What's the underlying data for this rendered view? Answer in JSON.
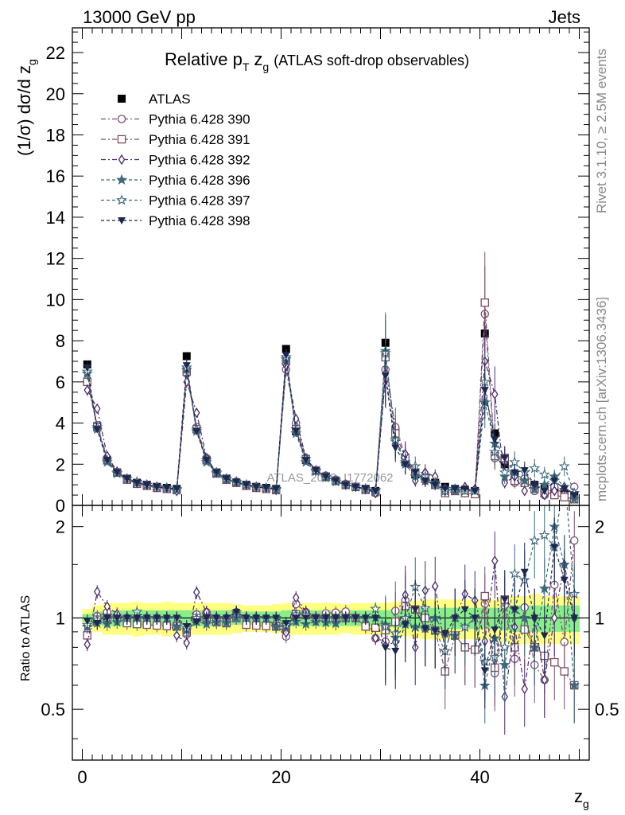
{
  "header": {
    "left": "13000 GeV pp",
    "right": "Jets"
  },
  "side_texts": {
    "rivet": "Rivet 3.1.10, ≥ 2.5M events",
    "mcplots": "mcplots.cern.ch [arXiv:1306.3436]"
  },
  "watermark": "ATLAS_2019_I1772062",
  "chart_data": [
    {
      "type": "scatter",
      "title": "Relative p_T z_g (ATLAS soft-drop observables)",
      "title_main": "Relative p",
      "title_sub_T": "T",
      "title_zg": "z",
      "title_sub_g": "g",
      "title_paren": "(ATLAS soft-drop observables)",
      "ylabel": "(1/σ) dσ/d z_g",
      "ylabel_main": "(1/σ) dσ/d z",
      "ylabel_sub": "g",
      "xlabel_main": "z",
      "xlabel_sub": "g",
      "xlim": [
        -1,
        51
      ],
      "ylim": [
        0,
        23.2
      ],
      "y_ticks": [
        0,
        2,
        4,
        6,
        8,
        10,
        12,
        14,
        16,
        18,
        20,
        22
      ],
      "legend_position": "top-left",
      "x": [
        0.5,
        1.5,
        2.5,
        3.5,
        4.5,
        5.5,
        6.5,
        7.5,
        8.5,
        9.5,
        10.5,
        11.5,
        12.5,
        13.5,
        14.5,
        15.5,
        16.5,
        17.5,
        18.5,
        19.5,
        20.5,
        21.5,
        22.5,
        23.5,
        24.5,
        25.5,
        26.5,
        27.5,
        28.5,
        29.5,
        30.5,
        31.5,
        32.5,
        33.5,
        34.5,
        35.5,
        36.5,
        37.5,
        38.5,
        39.5,
        40.5,
        41.5,
        42.5,
        43.5,
        44.5,
        45.5,
        46.5,
        47.5,
        48.5,
        49.5
      ],
      "series": [
        {
          "name": "ATLAS",
          "color": "#000000",
          "marker": "square-filled",
          "values": [
            6.85,
            3.85,
            2.2,
            1.6,
            1.3,
            1.1,
            1.0,
            0.9,
            0.85,
            0.8,
            7.25,
            3.7,
            2.2,
            1.6,
            1.3,
            1.1,
            1.0,
            0.9,
            0.85,
            0.8,
            7.6,
            3.6,
            2.2,
            1.7,
            1.4,
            1.2,
            1.0,
            0.9,
            0.8,
            0.7,
            7.9,
            3.6,
            2.1,
            1.5,
            1.3,
            1.1,
            0.9,
            0.8,
            0.75,
            0.7,
            8.35,
            3.5,
            2.0,
            1.5,
            1.2,
            1.0,
            0.8,
            0.7,
            0.6,
            0.5
          ]
        },
        {
          "name": "Pythia 6.428 390",
          "color": "#7a4e7a",
          "marker": "circle-open",
          "values": [
            6.1,
            3.9,
            2.3,
            1.6,
            1.3,
            1.1,
            1.0,
            0.9,
            0.8,
            0.75,
            6.4,
            3.8,
            2.3,
            1.6,
            1.3,
            1.15,
            1.0,
            0.9,
            0.8,
            0.75,
            6.6,
            4.0,
            2.3,
            1.7,
            1.45,
            1.25,
            1.05,
            0.9,
            0.75,
            0.6,
            6.6,
            3.8,
            2.4,
            1.6,
            1.2,
            1.0,
            0.8,
            0.7,
            0.6,
            0.55,
            9.3,
            2.3,
            2.2,
            1.1,
            1.3,
            0.7,
            0.5,
            0.9,
            0.5,
            0.9
          ]
        },
        {
          "name": "Pythia 6.428 391",
          "color": "#7a4e60",
          "marker": "square-open",
          "values": [
            6.0,
            3.8,
            2.2,
            1.6,
            1.25,
            1.05,
            0.95,
            0.85,
            0.8,
            0.75,
            6.5,
            3.7,
            2.2,
            1.55,
            1.25,
            1.1,
            0.95,
            0.85,
            0.8,
            0.75,
            7.0,
            3.7,
            2.25,
            1.7,
            1.4,
            1.2,
            1.0,
            0.9,
            0.75,
            0.65,
            7.2,
            3.5,
            2.3,
            1.6,
            1.3,
            1.0,
            0.6,
            0.7,
            0.6,
            0.55,
            9.85,
            2.4,
            2.3,
            1.2,
            1.1,
            0.8,
            0.6,
            0.5,
            0.4,
            0.3
          ]
        },
        {
          "name": "Pythia 6.428 392",
          "color": "#4a2a6e",
          "marker": "diamond-open",
          "values": [
            5.6,
            4.7,
            2.4,
            1.65,
            1.3,
            1.1,
            1.0,
            0.9,
            0.85,
            0.7,
            6.0,
            4.5,
            2.3,
            1.6,
            1.3,
            1.15,
            1.0,
            0.9,
            0.85,
            0.75,
            6.8,
            4.2,
            2.3,
            1.7,
            1.4,
            1.2,
            1.0,
            0.9,
            0.8,
            0.6,
            6.4,
            3.0,
            2.5,
            1.2,
            1.6,
            1.4,
            0.7,
            0.8,
            0.9,
            0.8,
            7.0,
            5.4,
            1.1,
            1.4,
            0.7,
            1.0,
            0.5,
            0.7,
            0.9,
            0.5
          ]
        },
        {
          "name": "Pythia 6.428 396",
          "color": "#3e6878",
          "marker": "star-filled",
          "values": [
            6.4,
            3.7,
            2.1,
            1.55,
            1.3,
            1.1,
            1.0,
            0.9,
            0.85,
            0.75,
            6.6,
            3.6,
            2.1,
            1.55,
            1.25,
            1.1,
            1.0,
            0.9,
            0.85,
            0.75,
            7.1,
            3.5,
            2.1,
            1.65,
            1.35,
            1.15,
            1.0,
            0.9,
            0.8,
            0.7,
            7.5,
            3.1,
            2.0,
            1.4,
            1.2,
            1.1,
            0.8,
            0.7,
            0.7,
            0.7,
            5.0,
            3.0,
            1.4,
            1.6,
            1.2,
            0.8,
            1.0,
            1.4,
            0.9,
            0.3
          ]
        },
        {
          "name": "Pythia 6.428 397",
          "color": "#3e6878",
          "marker": "star-open",
          "values": [
            6.5,
            3.8,
            2.2,
            1.6,
            1.3,
            1.15,
            1.0,
            0.9,
            0.85,
            0.8,
            6.7,
            3.7,
            2.2,
            1.6,
            1.3,
            1.15,
            1.0,
            0.9,
            0.85,
            0.8,
            7.2,
            3.7,
            2.25,
            1.7,
            1.4,
            1.2,
            1.0,
            0.9,
            0.8,
            0.75,
            7.4,
            3.2,
            2.1,
            1.9,
            1.4,
            1.0,
            0.7,
            0.8,
            0.7,
            0.7,
            6.0,
            2.6,
            1.6,
            2.1,
            1.6,
            1.8,
            1.5,
            1.2,
            1.9,
            0.6
          ]
        },
        {
          "name": "Pythia 6.428 398",
          "color": "#1c2850",
          "marker": "triangle-down-filled",
          "values": [
            6.7,
            3.7,
            2.2,
            1.6,
            1.3,
            1.1,
            1.0,
            0.9,
            0.85,
            0.8,
            6.8,
            3.6,
            2.2,
            1.6,
            1.3,
            1.15,
            1.0,
            0.9,
            0.85,
            0.8,
            7.3,
            3.6,
            2.2,
            1.7,
            1.4,
            1.2,
            1.0,
            0.9,
            0.8,
            0.7,
            6.3,
            2.8,
            2.0,
            1.6,
            1.2,
            1.0,
            0.8,
            0.8,
            0.8,
            0.7,
            5.6,
            3.2,
            2.3,
            1.6,
            1.7,
            1.0,
            0.7,
            1.2,
            0.8,
            0.5
          ]
        }
      ]
    },
    {
      "type": "scatter",
      "ylabel": "Ratio to ATLAS",
      "xlim": [
        -1,
        51
      ],
      "ylim": [
        0.34,
        2.35
      ],
      "y_ticks": [
        0.5,
        1,
        2
      ],
      "y_tick_labels": [
        "0.5",
        "1",
        "2"
      ],
      "x_ticks": [
        0,
        20,
        40
      ],
      "x_tick_labels": [
        "0",
        "20",
        "40"
      ],
      "bands": [
        {
          "name": "ATLAS uncertainty (outer)",
          "color": "#ffff80",
          "halfwidth": [
            0.07,
            0.1,
            0.12,
            0.12,
            0.12,
            0.13,
            0.12,
            0.12,
            0.13,
            0.12,
            0.12,
            0.12,
            0.12,
            0.12,
            0.12,
            0.11,
            0.1,
            0.1,
            0.1,
            0.11,
            0.12,
            0.12,
            0.12,
            0.12,
            0.12,
            0.12,
            0.11,
            0.12,
            0.12,
            0.12,
            0.12,
            0.13,
            0.13,
            0.14,
            0.15,
            0.15,
            0.15,
            0.15,
            0.15,
            0.15,
            0.15,
            0.15,
            0.17,
            0.18,
            0.18,
            0.2,
            0.18,
            0.18,
            0.18,
            0.18
          ]
        },
        {
          "name": "ATLAS uncertainty (inner)",
          "color": "#88ee88",
          "halfwidth": [
            0.03,
            0.05,
            0.06,
            0.06,
            0.06,
            0.07,
            0.06,
            0.06,
            0.06,
            0.06,
            0.06,
            0.06,
            0.06,
            0.06,
            0.06,
            0.05,
            0.05,
            0.05,
            0.05,
            0.05,
            0.06,
            0.06,
            0.06,
            0.06,
            0.06,
            0.06,
            0.06,
            0.06,
            0.06,
            0.06,
            0.06,
            0.07,
            0.07,
            0.08,
            0.08,
            0.08,
            0.08,
            0.08,
            0.08,
            0.08,
            0.08,
            0.08,
            0.09,
            0.1,
            0.1,
            0.1,
            0.1,
            0.1,
            0.1,
            0.1
          ]
        }
      ]
    }
  ]
}
